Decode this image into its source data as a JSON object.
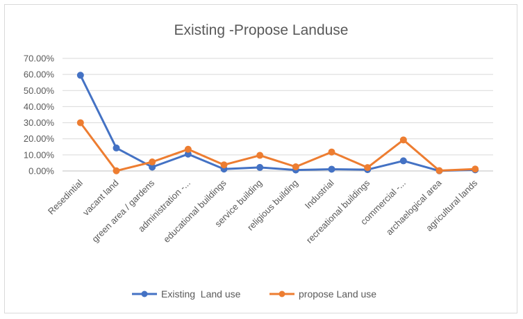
{
  "chart_data": {
    "type": "line",
    "title": "Existing -Propose Landuse",
    "xlabel": "",
    "ylabel": "",
    "ylim": [
      0,
      0.7
    ],
    "yticks": [
      "0.00%",
      "10.00%",
      "20.00%",
      "30.00%",
      "40.00%",
      "50.00%",
      "60.00%",
      "70.00%"
    ],
    "grid": true,
    "legend_position": "bottom",
    "categories": [
      "Resedintial",
      "vacant land",
      "green area / gardens",
      "administration -...",
      "educational buildings",
      "service building",
      "religious building",
      "Industrial",
      "recreational buildings",
      "commercial -...",
      "archaelogical area",
      "agricultural lands"
    ],
    "series": [
      {
        "name": "Existing  Land use",
        "color": "#4472c4",
        "values": [
          0.595,
          0.143,
          0.024,
          0.105,
          0.012,
          0.022,
          0.006,
          0.011,
          0.008,
          0.063,
          0.001,
          0.007
        ]
      },
      {
        "name": "propose Land use",
        "color": "#ed7d31",
        "values": [
          0.3,
          0.001,
          0.056,
          0.135,
          0.038,
          0.097,
          0.026,
          0.118,
          0.021,
          0.193,
          0.002,
          0.012
        ]
      }
    ]
  }
}
